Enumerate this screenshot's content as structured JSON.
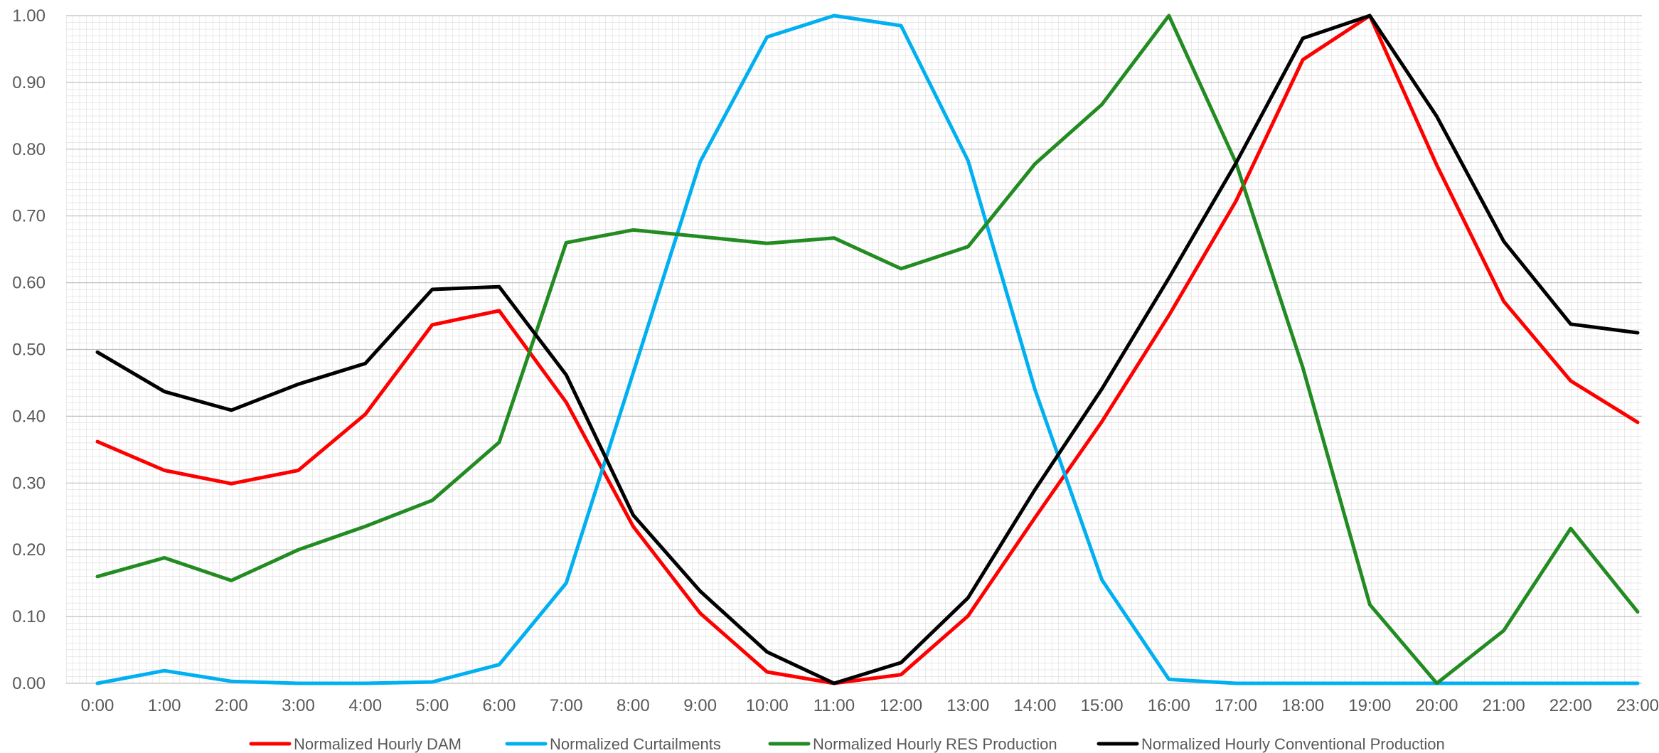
{
  "chart_data": {
    "type": "line",
    "title": "",
    "xlabel": "",
    "ylabel": "",
    "categories": [
      "0:00",
      "1:00",
      "2:00",
      "3:00",
      "4:00",
      "5:00",
      "6:00",
      "7:00",
      "8:00",
      "9:00",
      "10:00",
      "11:00",
      "12:00",
      "13:00",
      "14:00",
      "15:00",
      "16:00",
      "17:00",
      "18:00",
      "19:00",
      "20:00",
      "21:00",
      "22:00",
      "23:00"
    ],
    "ylim": [
      0,
      1
    ],
    "yticks": [
      "0.00",
      "0.10",
      "0.20",
      "0.30",
      "0.40",
      "0.50",
      "0.60",
      "0.70",
      "0.80",
      "0.90",
      "1.00"
    ],
    "grid": "dense",
    "legend_position": "bottom",
    "series": [
      {
        "name": "Normalized Hourly DAM",
        "color": "#ff0000",
        "values": [
          0.362,
          0.319,
          0.299,
          0.319,
          0.403,
          0.537,
          0.558,
          0.421,
          0.235,
          0.105,
          0.017,
          0.0,
          0.013,
          0.101,
          0.248,
          0.392,
          0.551,
          0.722,
          0.934,
          1.0,
          0.776,
          0.572,
          0.453,
          0.391
        ]
      },
      {
        "name": "Normalized Curtailments",
        "color": "#00b0f0",
        "values": [
          0.0,
          0.019,
          0.003,
          0.0,
          0.0,
          0.002,
          0.028,
          0.15,
          0.465,
          0.781,
          0.968,
          1.0,
          0.985,
          0.783,
          0.44,
          0.155,
          0.006,
          0.0,
          0.0,
          0.0,
          0.0,
          0.0,
          0.0,
          0.0
        ]
      },
      {
        "name": "Normalized Hourly RES Production",
        "color": "#228b22",
        "values": [
          0.16,
          0.188,
          0.154,
          0.2,
          0.235,
          0.274,
          0.361,
          0.66,
          0.679,
          0.669,
          0.659,
          0.667,
          0.621,
          0.654,
          0.778,
          0.867,
          1.0,
          0.78,
          0.473,
          0.118,
          0.0,
          0.079,
          0.232,
          0.107
        ]
      },
      {
        "name": "Normalized Hourly Conventional Production",
        "color": "#000000",
        "values": [
          0.496,
          0.437,
          0.409,
          0.448,
          0.479,
          0.59,
          0.594,
          0.462,
          0.252,
          0.138,
          0.047,
          0.0,
          0.031,
          0.128,
          0.29,
          0.441,
          0.607,
          0.779,
          0.966,
          1.0,
          0.849,
          0.662,
          0.538,
          0.525
        ]
      }
    ]
  }
}
